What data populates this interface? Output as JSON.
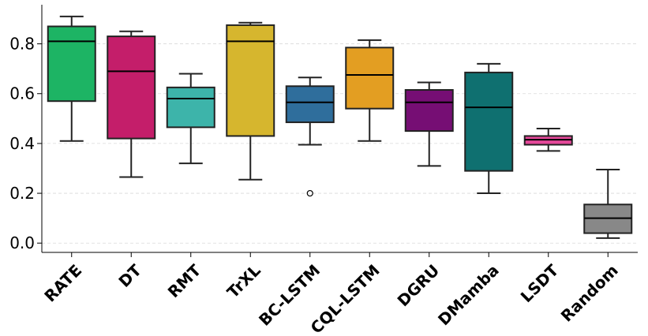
{
  "chart_data": {
    "type": "box",
    "title": "",
    "xlabel": "",
    "ylabel": "",
    "ylim": [
      -0.03,
      0.96
    ],
    "yticks": [
      0.0,
      0.2,
      0.4,
      0.6,
      0.8
    ],
    "ytick_labels": [
      "0.0",
      "0.2",
      "0.4",
      "0.6",
      "0.8"
    ],
    "grid": "horizontal-dashed",
    "legend": "none",
    "categories": [
      "RATE",
      "DT",
      "RMT",
      "TrXL",
      "BC-LSTM",
      "CQL-LSTM",
      "DGRU",
      "DMamba",
      "LSDT",
      "Random"
    ],
    "boxes": [
      {
        "min": 0.41,
        "q1": 0.57,
        "median": 0.81,
        "q3": 0.87,
        "max": 0.91,
        "outliers": [],
        "color": "#1db464"
      },
      {
        "min": 0.265,
        "q1": 0.42,
        "median": 0.69,
        "q3": 0.83,
        "max": 0.85,
        "outliers": [],
        "color": "#c41e6a"
      },
      {
        "min": 0.32,
        "q1": 0.465,
        "median": 0.58,
        "q3": 0.625,
        "max": 0.68,
        "outliers": [],
        "color": "#3db4aa"
      },
      {
        "min": 0.255,
        "q1": 0.43,
        "median": 0.81,
        "q3": 0.875,
        "max": 0.885,
        "outliers": [],
        "color": "#d6b62e"
      },
      {
        "min": 0.395,
        "q1": 0.485,
        "median": 0.565,
        "q3": 0.63,
        "max": 0.665,
        "outliers": [
          0.2
        ],
        "color": "#2f6e9c"
      },
      {
        "min": 0.41,
        "q1": 0.54,
        "median": 0.675,
        "q3": 0.785,
        "max": 0.815,
        "outliers": [],
        "color": "#e39e22"
      },
      {
        "min": 0.31,
        "q1": 0.45,
        "median": 0.565,
        "q3": 0.615,
        "max": 0.645,
        "outliers": [],
        "color": "#760e74"
      },
      {
        "min": 0.2,
        "q1": 0.29,
        "median": 0.545,
        "q3": 0.685,
        "max": 0.72,
        "outliers": [],
        "color": "#0f7070"
      },
      {
        "min": 0.37,
        "q1": 0.395,
        "median": 0.415,
        "q3": 0.43,
        "max": 0.46,
        "outliers": [],
        "color": "#e5489a"
      },
      {
        "min": 0.02,
        "q1": 0.04,
        "median": 0.1,
        "q3": 0.155,
        "max": 0.295,
        "outliers": [],
        "color": "#888888"
      }
    ]
  }
}
